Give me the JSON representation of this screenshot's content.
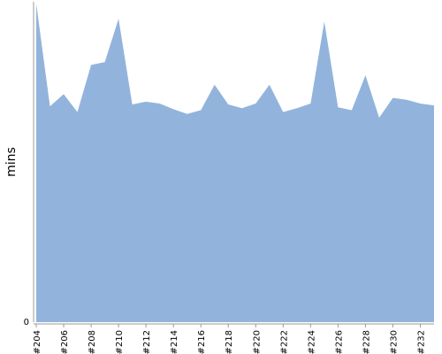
{
  "chart_data": {
    "type": "area",
    "ylabel": "mins",
    "y_tick_labels": [
      "0"
    ],
    "x": [
      "#204",
      "#205",
      "#206",
      "#207",
      "#208",
      "#209",
      "#210",
      "#211",
      "#212",
      "#213",
      "#214",
      "#215",
      "#216",
      "#217",
      "#218",
      "#219",
      "#220",
      "#221",
      "#222",
      "#223",
      "#224",
      "#225",
      "#226",
      "#227",
      "#228",
      "#229",
      "#230",
      "#231",
      "#232",
      "#233"
    ],
    "x_tick_labels": [
      "#204",
      "#206",
      "#208",
      "#210",
      "#212",
      "#214",
      "#216",
      "#218",
      "#220",
      "#222",
      "#224",
      "#226",
      "#228",
      "#230",
      "#232"
    ],
    "series": [
      {
        "values": [
          33.8,
          22.9,
          24.2,
          22.3,
          27.3,
          27.6,
          32.2,
          23.1,
          23.4,
          23.2,
          22.6,
          22.1,
          22.5,
          25.2,
          23.1,
          22.7,
          23.2,
          25.2,
          22.3,
          22.7,
          23.2,
          31.9,
          22.8,
          22.5,
          26.2,
          21.7,
          23.8,
          23.6,
          23.2,
          23.0
        ],
        "color": "#92b4dc"
      }
    ],
    "ylim": [
      0,
      34
    ],
    "grid": false,
    "legend": "none"
  }
}
